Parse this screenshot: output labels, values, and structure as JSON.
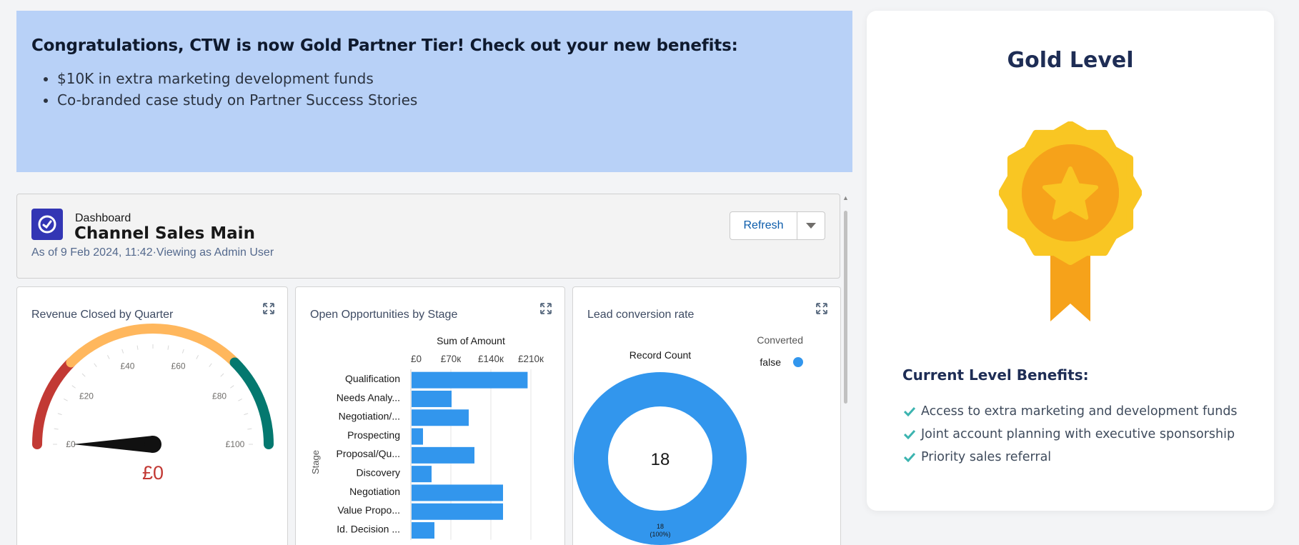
{
  "banner": {
    "headline": "Congratulations, CTW is now Gold Partner Tier! Check out your new benefits:",
    "items": [
      "$10K in extra marketing development funds",
      "Co-branded case study on Partner Success Stories"
    ]
  },
  "dashboard": {
    "kicker": "Dashboard",
    "title": "Channel Sales Main",
    "meta": "As of 9 Feb 2024, 11:42·Viewing as Admin User",
    "refresh_label": "Refresh"
  },
  "gauge_card": {
    "title": "Revenue Closed by Quarter",
    "value_label": "£0",
    "colors": {
      "low": "#c23934",
      "mid": "#ffb75d",
      "high": "#04786f"
    }
  },
  "bar_card": {
    "title": "Open Opportunities by Stage",
    "axis_title": "Sum of Amount",
    "y_axis_title": "Stage",
    "bar_color": "#3296ed"
  },
  "donut_card": {
    "title": "Lead conversion rate",
    "subtitle": "Record Count",
    "legend_title": "Converted",
    "center_value": "18",
    "slice_label_count": "18",
    "slice_label_pct": "(100%)"
  },
  "chart_data": [
    {
      "type": "gauge",
      "title": "Revenue Closed by Quarter",
      "ticks": [
        "£0",
        "£20",
        "£40",
        "£60",
        "£80",
        "£100"
      ],
      "range": [
        0,
        100
      ],
      "value": 0,
      "value_label": "£0",
      "bands": [
        {
          "from": 0,
          "to": 25,
          "color": "#c23934"
        },
        {
          "from": 25,
          "to": 75,
          "color": "#ffb75d"
        },
        {
          "from": 75,
          "to": 100,
          "color": "#04786f"
        }
      ]
    },
    {
      "type": "bar",
      "orientation": "horizontal",
      "title": "Open Opportunities by Stage",
      "xlabel": "Sum of Amount",
      "ylabel": "Stage",
      "x_ticks": [
        "£0",
        "£70к",
        "£140к",
        "£210к"
      ],
      "xlim": [
        0,
        210000
      ],
      "categories": [
        "Qualification",
        "Needs Analy...",
        "Negotiation/...",
        "Prospecting",
        "Proposal/Qu...",
        "Discovery",
        "Negotiation",
        "Value Propo...",
        "Id. Decision ..."
      ],
      "values": [
        203000,
        70000,
        100000,
        20000,
        110000,
        35000,
        160000,
        160000,
        40000
      ]
    },
    {
      "type": "pie",
      "subtype": "donut",
      "title": "Lead conversion rate",
      "subtitle": "Record Count",
      "legend_title": "Converted",
      "legend_position": "top-right",
      "slices": [
        {
          "label": "false",
          "value": 18,
          "color": "#3296ed"
        }
      ],
      "total": 18
    }
  ],
  "gold": {
    "title": "Gold Level",
    "benefits_title": "Current Level Benefits:",
    "benefits": [
      "Access to extra marketing and development funds",
      "Joint account planning with executive sponsorship",
      "Priority sales referral"
    ],
    "check_color": "#3cb4b0",
    "badge_colors": {
      "outer": "#f9c623",
      "inner": "#f39c1a",
      "ribbon": "#f6a21a"
    }
  }
}
